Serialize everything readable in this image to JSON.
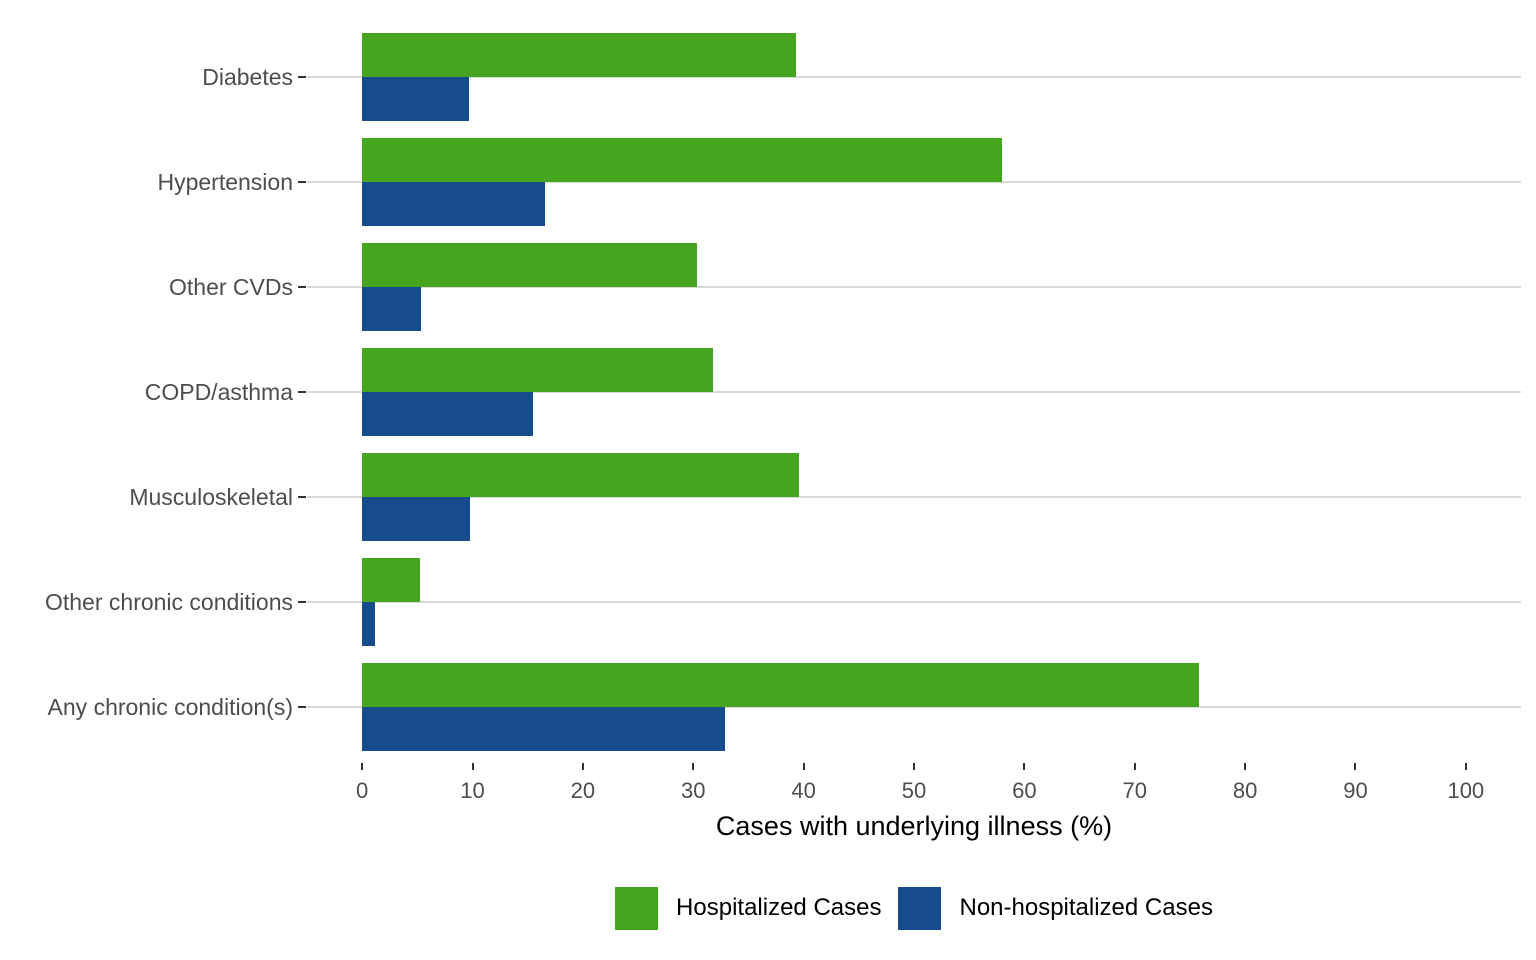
{
  "chart_data": {
    "type": "bar",
    "orientation": "horizontal",
    "title": "",
    "xlabel": "Cases with underlying illness (%)",
    "categories": [
      "Diabetes",
      "Hypertension",
      "Other CVDs",
      "COPD/asthma",
      "Musculoskeletal",
      "Other chronic conditions",
      "Any chronic condition(s)"
    ],
    "series": [
      {
        "name": "Hospitalized Cases",
        "color": "#46A51E",
        "values": [
          39.3,
          58.0,
          30.3,
          31.8,
          39.6,
          5.2,
          75.8
        ]
      },
      {
        "name": "Non-hospitalized Cases",
        "color": "#174C8C",
        "values": [
          9.7,
          16.6,
          5.3,
          15.5,
          9.8,
          1.2,
          32.9
        ]
      }
    ],
    "xlim": [
      0,
      100
    ],
    "xticks": [
      0,
      10,
      20,
      30,
      40,
      50,
      60,
      70,
      80,
      90,
      100
    ],
    "grid": "horizontal-category-lines",
    "legend_position": "bottom",
    "colors": {
      "gridline": "#D9D9D9",
      "tick_mark": "#333333",
      "axis_text": "#4D4D4D",
      "axis_title": "#000000",
      "background": "#FFFFFF"
    }
  }
}
